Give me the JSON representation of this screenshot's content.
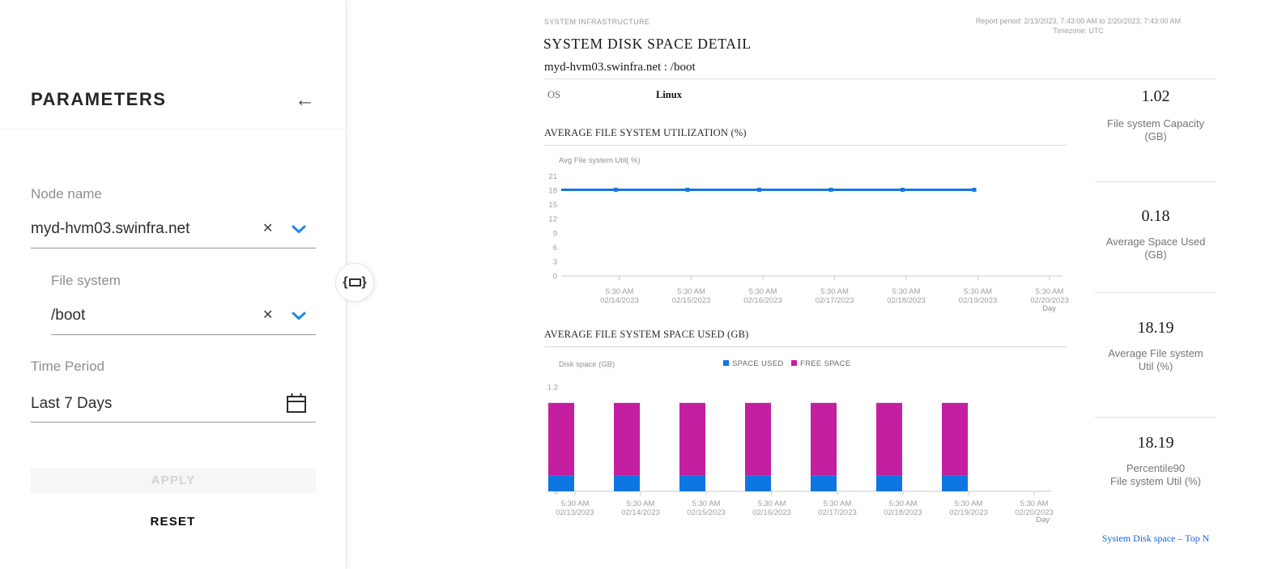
{
  "sidebar": {
    "title": "PARAMETERS",
    "fields": {
      "node": {
        "label": "Node name",
        "value": "myd-hvm03.swinfra.net"
      },
      "filesystem": {
        "label": "File system",
        "value": "/boot"
      },
      "time_period": {
        "label": "Time Period",
        "value": "Last 7 Days"
      }
    },
    "apply_label": "APPLY",
    "reset_label": "RESET"
  },
  "icons": {
    "back_arrow": "←",
    "clear": "✕"
  },
  "header": {
    "eyebrow": "SYSTEM INFRASTRUCTURE",
    "title": "SYSTEM DISK SPACE DETAIL",
    "subtitle": "myd-hvm03.swinfra.net : /boot",
    "report_period": "Report period: 2/13/2023, 7:43:00 AM to 2/20/2023, 7:43:00 AM",
    "timezone": "Timezone: UTC",
    "os_label": "OS",
    "os_value": "Linux"
  },
  "metrics": [
    {
      "value": "1.02",
      "label": "File system Capacity\n(GB)"
    },
    {
      "value": "0.18",
      "label": "Average Space Used\n(GB)"
    },
    {
      "value": "18.19",
      "label": "Average File system\nUtil (%)"
    },
    {
      "value": "18.19",
      "label": "Percentile90\nFile system Util (%)"
    }
  ],
  "footer_link": "System Disk space – Top N",
  "colors": {
    "accent_blue": "#1e88e5",
    "line_blue": "#1576e3",
    "bar_blue": "#0e76e2",
    "magenta": "#c41ea1"
  },
  "chart_data": [
    {
      "type": "line",
      "title": "AVERAGE FILE SYSTEM UTILIZATION (%)",
      "ylabel": "Avg File system Util( %)",
      "xlabel": "Day",
      "ylim": [
        0,
        21
      ],
      "yticks": [
        21,
        18,
        15,
        12,
        9,
        6,
        3,
        0
      ],
      "grid": false,
      "legend_position": "none",
      "x_ticks": [
        [
          "5:30 AM",
          "02/14/2023"
        ],
        [
          "5:30 AM",
          "02/15/2023"
        ],
        [
          "5:30 AM",
          "02/16/2023"
        ],
        [
          "5:30 AM",
          "02/17/2023"
        ],
        [
          "5:30 AM",
          "02/18/2023"
        ],
        [
          "5:30 AM",
          "02/19/2023"
        ],
        [
          "5:30 AM",
          "02/20/2023"
        ]
      ],
      "series": [
        {
          "name": "Avg File system Util (%)",
          "color": "#1576e3",
          "values": [
            18.19,
            18.19,
            18.19,
            18.19,
            18.19,
            18.19,
            18.19
          ]
        }
      ]
    },
    {
      "type": "bar",
      "stacked": true,
      "title": "AVERAGE FILE SYSTEM SPACE USED (GB)",
      "ylabel": "Disk space (GB)",
      "xlabel": "Day",
      "ylim": [
        0,
        1.2
      ],
      "yticks": [
        1.2,
        0
      ],
      "grid": false,
      "legend_position": "top",
      "x_ticks": [
        [
          "5:30 AM",
          "02/13/2023"
        ],
        [
          "5:30 AM",
          "02/14/2023"
        ],
        [
          "5:30 AM",
          "02/15/2023"
        ],
        [
          "5:30 AM",
          "02/16/2023"
        ],
        [
          "5:30 AM",
          "02/17/2023"
        ],
        [
          "5:30 AM",
          "02/18/2023"
        ],
        [
          "5:30 AM",
          "02/19/2023"
        ],
        [
          "5:30 AM",
          "02/20/2023"
        ]
      ],
      "series": [
        {
          "name": "SPACE USED",
          "color": "#0e76e2",
          "values": [
            0.18,
            0.18,
            0.18,
            0.18,
            0.18,
            0.18,
            0.18
          ]
        },
        {
          "name": "FREE SPACE",
          "color": "#c41ea1",
          "values": [
            0.84,
            0.84,
            0.84,
            0.84,
            0.84,
            0.84,
            0.84
          ]
        }
      ]
    }
  ]
}
